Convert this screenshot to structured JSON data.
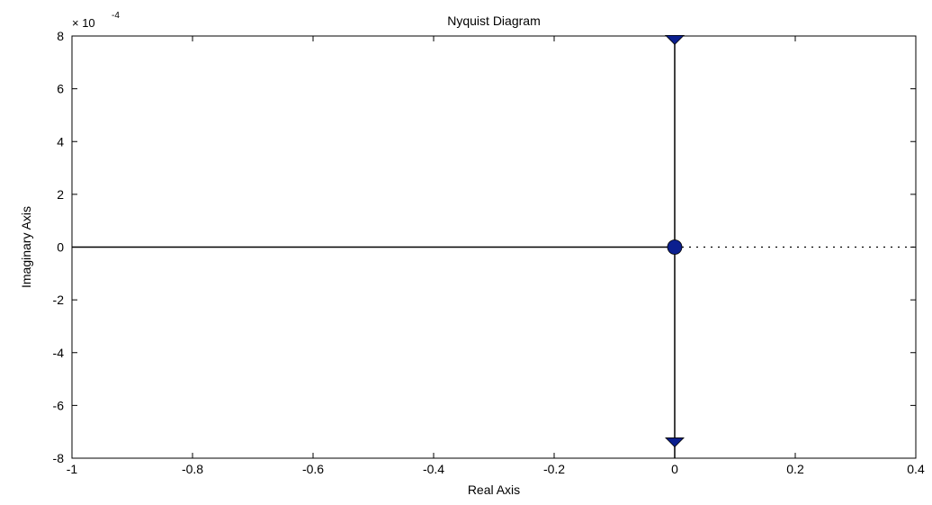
{
  "chart_data": {
    "type": "line",
    "title": "Nyquist Diagram",
    "xlabel": "Real Axis",
    "ylabel": "Imaginary Axis",
    "xlim": [
      -1,
      0.4
    ],
    "ylim": [
      -8,
      8
    ],
    "y_multiplier": {
      "base": "× 10",
      "exponent": "-4"
    },
    "x_ticks": [
      -1,
      -0.8,
      -0.6,
      -0.4,
      -0.2,
      0,
      0.2,
      0.4
    ],
    "x_tick_labels": [
      "-1",
      "-0.8",
      "-0.6",
      "-0.4",
      "-0.2",
      "0",
      "0.2",
      "0.4"
    ],
    "y_ticks": [
      -8,
      -6,
      -4,
      -2,
      0,
      2,
      4,
      6,
      8
    ],
    "y_tick_labels": [
      "-8",
      "-6",
      "-4",
      "-2",
      "0",
      "2",
      "4",
      "6",
      "8"
    ],
    "grid": false,
    "colors": {
      "line": "#000000",
      "marker": "#0b1f8f"
    },
    "series": [
      {
        "style": "solid",
        "x": [
          0,
          0
        ],
        "y": [
          8,
          -8
        ]
      },
      {
        "style": "solid",
        "x": [
          -1,
          0
        ],
        "y": [
          0,
          0
        ]
      },
      {
        "style": "dotted",
        "x": [
          0,
          0.4
        ],
        "y": [
          0,
          0
        ]
      }
    ],
    "markers": [
      {
        "shape": "circle",
        "x": 0,
        "y": 0
      },
      {
        "shape": "triangle-down",
        "x": 0,
        "y": 7.85
      },
      {
        "shape": "triangle-down",
        "x": 0,
        "y": -7.4
      }
    ]
  }
}
